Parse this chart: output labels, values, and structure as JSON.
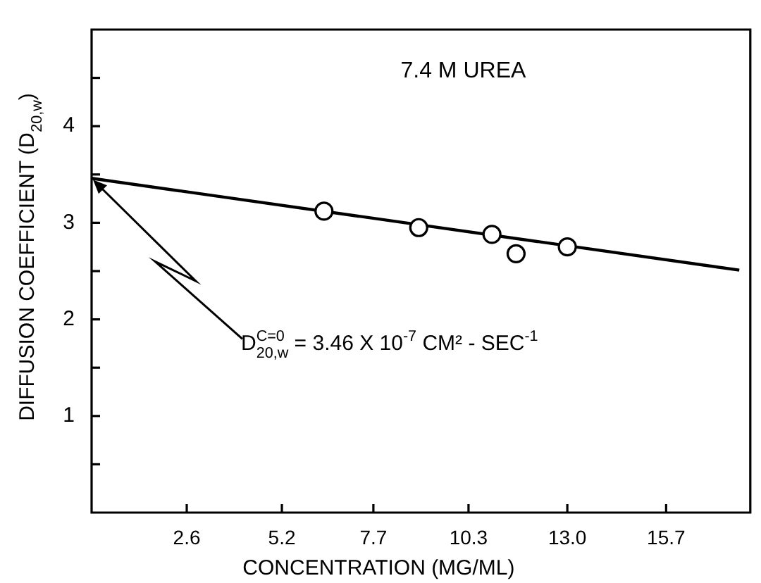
{
  "chart_data": {
    "type": "scatter",
    "title": "7.4 M UREA",
    "xlabel": "CONCENTRATION (MG/ML)",
    "ylabel": "DIFFUSION COEFFICIENT (D$_{20,w}$)",
    "annotations": [
      {
        "text": "D$_{20,w}$$^{C=0}$ = 3.46 X 10$^{-7}$ CM² - SEC$^{-1}$",
        "x": 0,
        "y": 3.46
      }
    ],
    "xlim": [
      0,
      18
    ],
    "ylim": [
      0,
      5
    ],
    "xticks": [
      2.6,
      5.2,
      7.7,
      10.3,
      {
        "value": 13,
        "label": "13.0"
      },
      15.7
    ],
    "yticks": [
      {
        "value": 0.5,
        "label": null
      },
      1,
      {
        "value": 1.5,
        "label": null
      },
      2,
      {
        "value": 2.5,
        "label": null
      },
      3,
      {
        "value": 3.5,
        "label": null
      },
      4,
      {
        "value": 4.5,
        "label": null
      }
    ],
    "grid": false,
    "legend": false,
    "marker": "circle",
    "series": [
      {
        "type": "scatter",
        "color": "#000000",
        "x": [
          6.35,
          8.94,
          10.94,
          11.6,
          13.0
        ],
        "values": [
          3.12,
          2.95,
          2.88,
          2.68,
          2.75
        ]
      },
      {
        "type": "line",
        "color": "#000000",
        "marker": "none",
        "line_style": "solid",
        "x": [
          0,
          17.7
        ],
        "values": [
          3.46,
          2.51
        ]
      }
    ]
  }
}
